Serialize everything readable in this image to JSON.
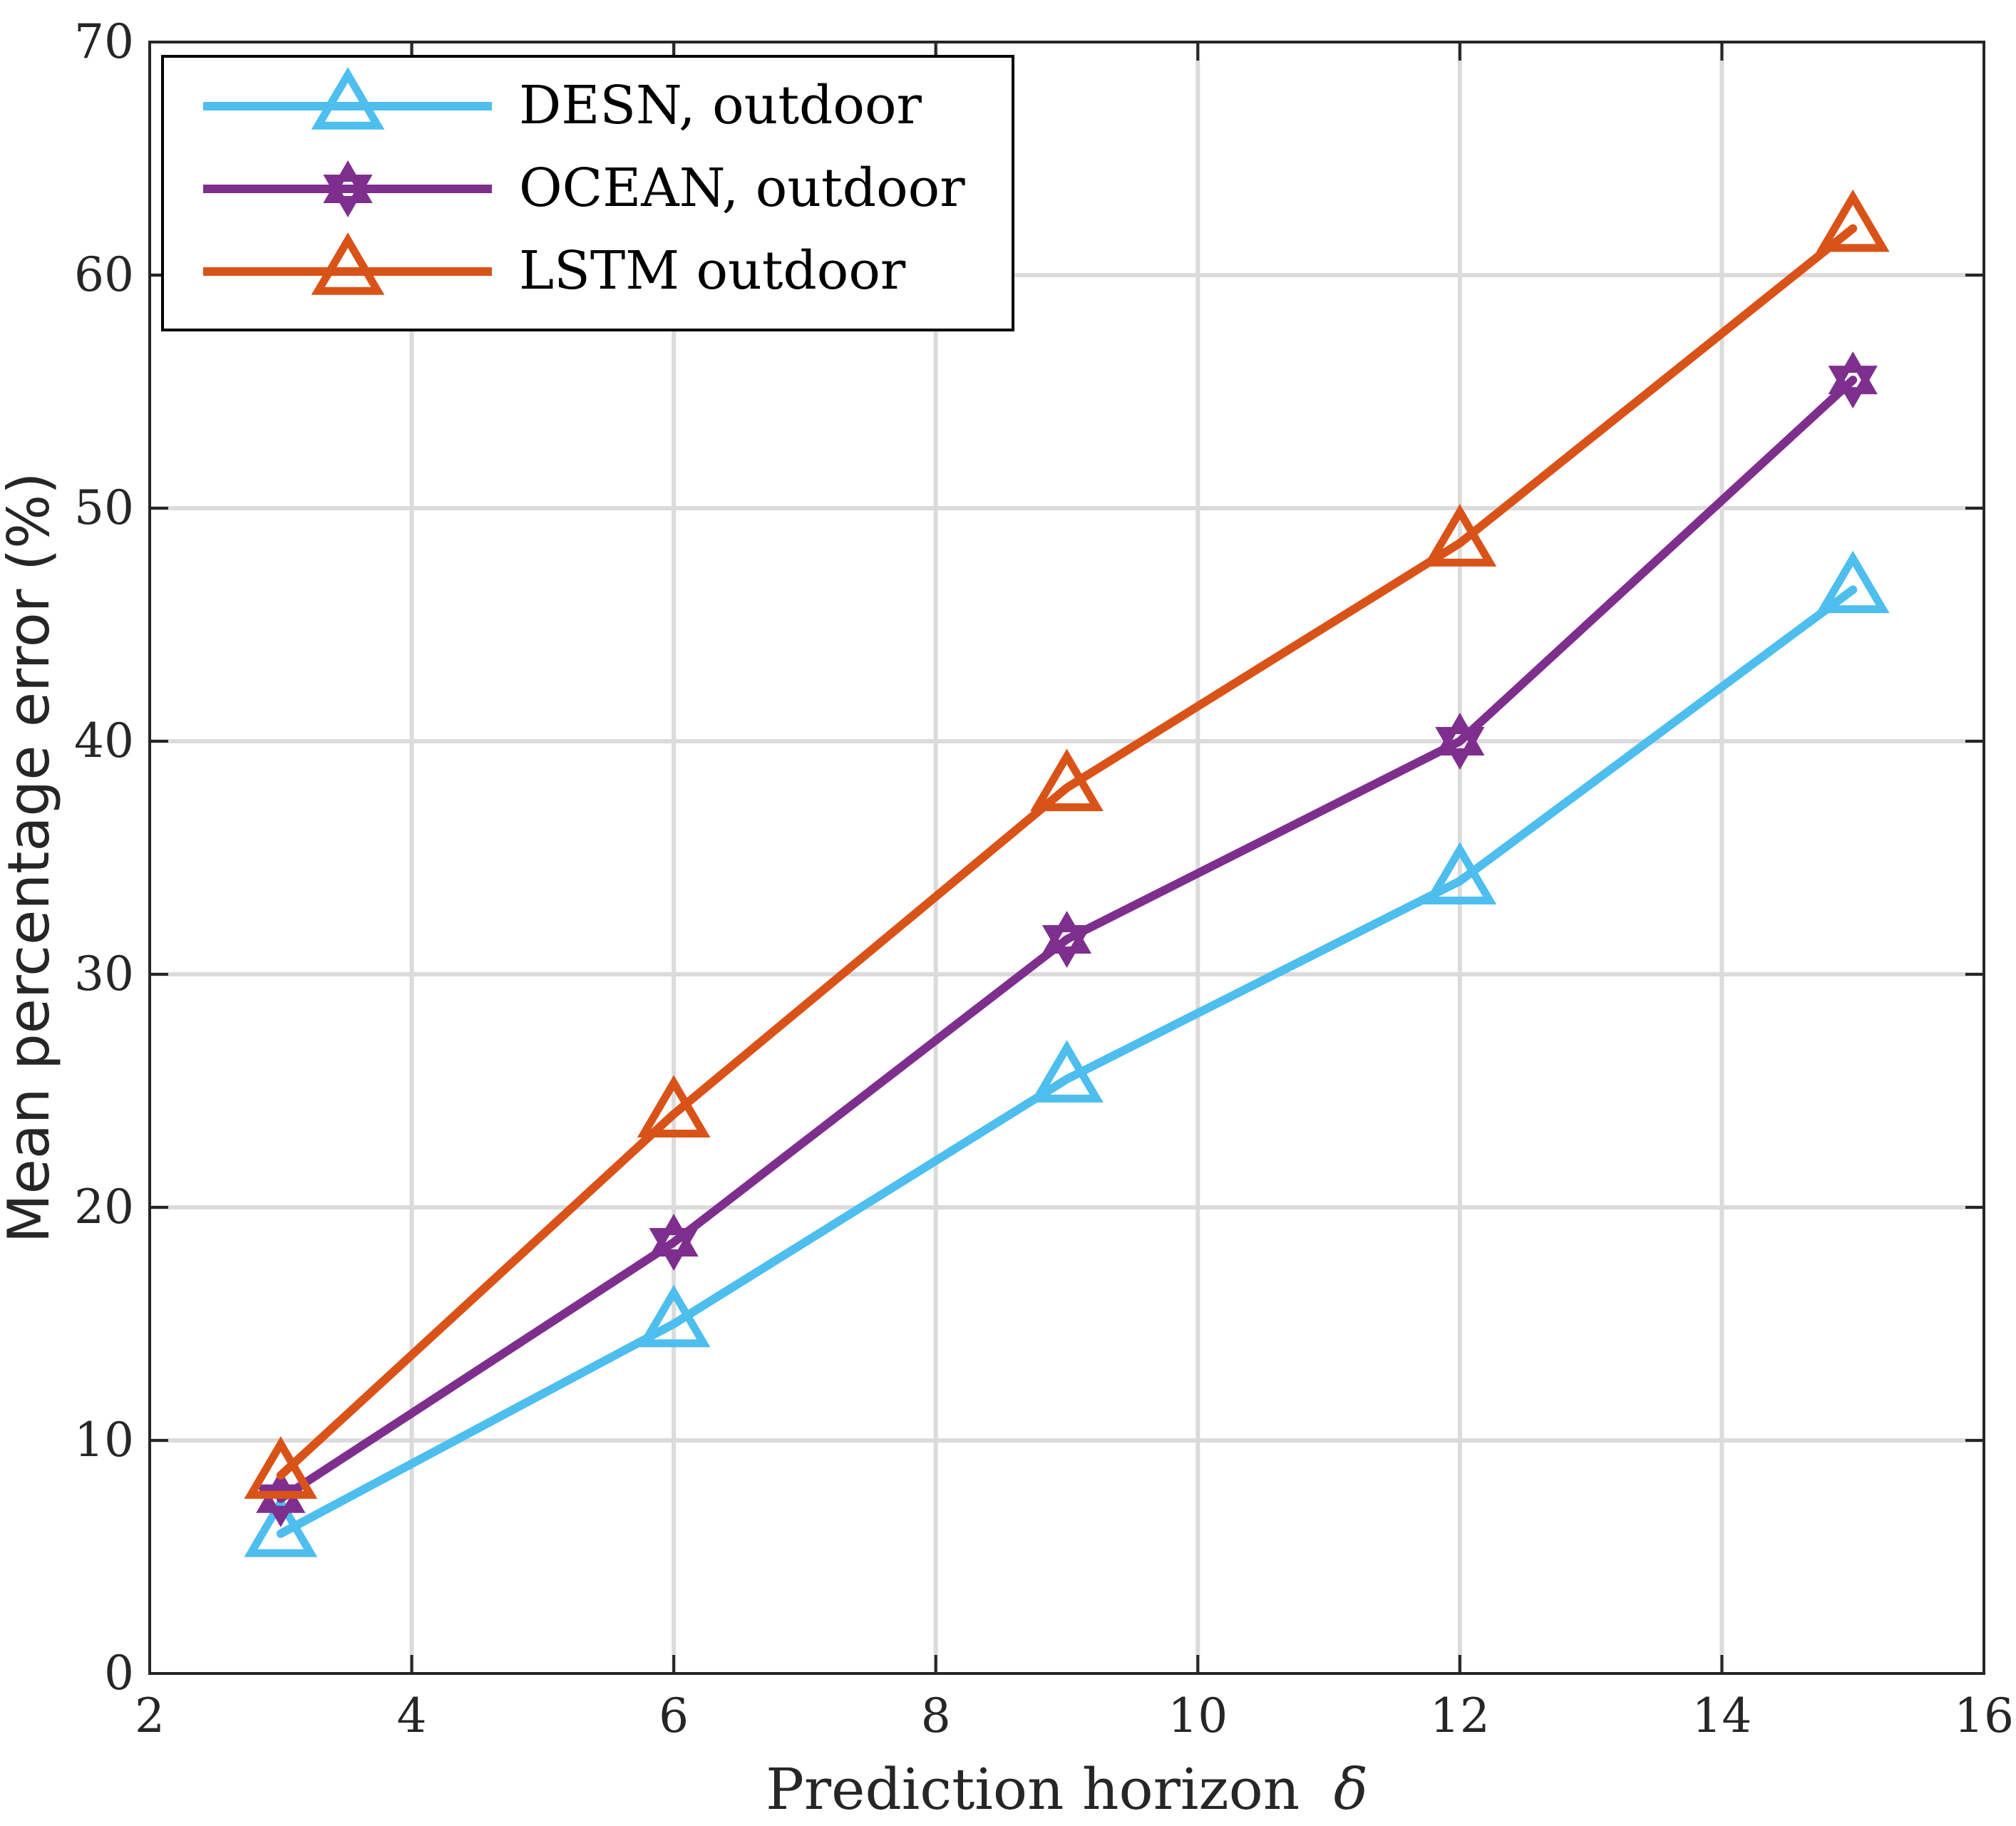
{
  "chart_data": {
    "type": "line",
    "title": "",
    "xlabel": "Prediction horizon",
    "xlabel_symbol": "δ",
    "ylabel": "Mean percentage error (%)",
    "xlim": [
      2,
      16
    ],
    "ylim": [
      0,
      70
    ],
    "x_ticks": [
      "2",
      "4",
      "6",
      "8",
      "10",
      "12",
      "14",
      "16"
    ],
    "y_ticks": [
      "0",
      "10",
      "20",
      "30",
      "40",
      "50",
      "60",
      "70"
    ],
    "grid": true,
    "legend_position": "top-left",
    "x": [
      3,
      6,
      9,
      12,
      15
    ],
    "series": [
      {
        "name": "DESN, outdoor",
        "values": [
          6,
          15,
          25.5,
          34,
          46.5
        ],
        "color": "#4DBEEE",
        "marker": "triangle"
      },
      {
        "name": "OCEAN, outdoor",
        "values": [
          7.5,
          18.5,
          31.5,
          40,
          55.5
        ],
        "color": "#7E2F8E",
        "marker": "hexagram"
      },
      {
        "name": "LSTM outdoor",
        "values": [
          8.5,
          24,
          38,
          48.5,
          62
        ],
        "color": "#D95319",
        "marker": "triangle"
      }
    ]
  }
}
